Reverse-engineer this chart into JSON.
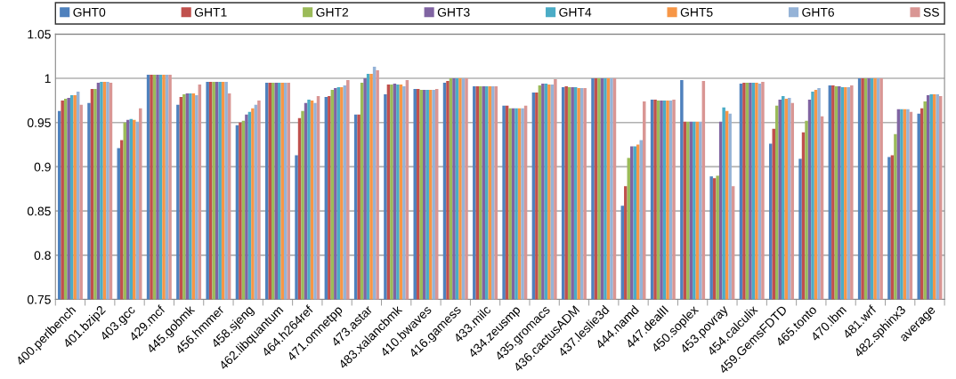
{
  "chart_data": {
    "type": "bar",
    "categories": [
      "400.perlbench",
      "401.bzip2",
      "403.gcc",
      "429.mcf",
      "445.gobmk",
      "456.hmmer",
      "458.sjeng",
      "462.libquantum",
      "464.h264ref",
      "471.omnetpp",
      "473.astar",
      "483.xalancbmk",
      "410.bwaves",
      "416.gamess",
      "433.milc",
      "434.zeusmp",
      "435.gromacs",
      "436.cactusADM",
      "437.leslie3d",
      "444.namd",
      "447.dealII",
      "450.soplex",
      "453.povray",
      "454.calculix",
      "459.GemsFDTD",
      "465.tonto",
      "470.lbm",
      "481.wrf",
      "482.sphinx3",
      "average"
    ],
    "series": [
      {
        "name": "GHT0",
        "color": "#4f81bd",
        "values": [
          0.963,
          0.972,
          0.921,
          1.004,
          0.97,
          0.996,
          0.947,
          0.995,
          0.913,
          0.979,
          0.959,
          0.982,
          0.988,
          0.995,
          0.991,
          0.969,
          0.984,
          0.99,
          1.0,
          0.856,
          0.976,
          0.998,
          0.889,
          0.994,
          0.926,
          0.909,
          0.992,
          1.0,
          0.911,
          0.96
        ]
      },
      {
        "name": "GHT1",
        "color": "#c0504d",
        "values": [
          0.975,
          0.988,
          0.93,
          1.004,
          0.979,
          0.996,
          0.95,
          0.995,
          0.955,
          0.98,
          0.959,
          0.993,
          0.988,
          0.997,
          0.991,
          0.969,
          0.984,
          0.991,
          1.0,
          0.878,
          0.976,
          0.951,
          0.887,
          0.995,
          0.943,
          0.939,
          0.992,
          1.0,
          0.913,
          0.966
        ]
      },
      {
        "name": "GHT2",
        "color": "#9bbb59",
        "values": [
          0.977,
          0.988,
          0.95,
          1.004,
          0.982,
          0.996,
          0.952,
          0.995,
          0.963,
          0.987,
          0.995,
          0.993,
          0.987,
          1.0,
          0.991,
          0.966,
          0.992,
          0.99,
          1.0,
          0.91,
          0.975,
          0.951,
          0.89,
          0.995,
          0.969,
          0.952,
          0.991,
          1.0,
          0.937,
          0.974
        ]
      },
      {
        "name": "GHT3",
        "color": "#8064a2",
        "values": [
          0.978,
          0.995,
          0.953,
          1.004,
          0.983,
          0.996,
          0.959,
          0.995,
          0.972,
          0.989,
          1.0,
          0.994,
          0.987,
          1.0,
          0.991,
          0.966,
          0.994,
          0.99,
          1.0,
          0.923,
          0.975,
          0.951,
          0.951,
          0.995,
          0.976,
          0.976,
          0.991,
          1.0,
          0.965,
          0.981
        ]
      },
      {
        "name": "GHT4",
        "color": "#4bacc6",
        "values": [
          0.981,
          0.996,
          0.954,
          1.004,
          0.983,
          0.996,
          0.962,
          0.995,
          0.976,
          0.99,
          1.005,
          0.993,
          0.987,
          1.0,
          0.991,
          0.966,
          0.994,
          0.99,
          1.0,
          0.923,
          0.975,
          0.951,
          0.967,
          0.995,
          0.98,
          0.985,
          0.99,
          1.0,
          0.965,
          0.982
        ]
      },
      {
        "name": "GHT5",
        "color": "#f79646",
        "values": [
          0.981,
          0.996,
          0.953,
          1.004,
          0.983,
          0.996,
          0.966,
          0.995,
          0.975,
          0.99,
          1.005,
          0.993,
          0.987,
          1.0,
          0.991,
          0.966,
          0.993,
          0.989,
          1.0,
          0.925,
          0.975,
          0.951,
          0.963,
          0.995,
          0.977,
          0.987,
          0.99,
          1.0,
          0.965,
          0.982
        ]
      },
      {
        "name": "GHT6",
        "color": "#95b3d7",
        "values": [
          0.985,
          0.996,
          0.951,
          1.004,
          0.981,
          0.996,
          0.97,
          0.995,
          0.972,
          0.992,
          1.013,
          0.991,
          0.987,
          1.0,
          0.991,
          0.966,
          0.993,
          0.989,
          1.0,
          0.93,
          0.975,
          0.951,
          0.96,
          0.994,
          0.978,
          0.989,
          0.99,
          1.0,
          0.965,
          0.982
        ]
      },
      {
        "name": "SS",
        "color": "#d99694",
        "values": [
          0.97,
          0.995,
          0.966,
          1.004,
          0.993,
          0.983,
          0.975,
          0.995,
          0.98,
          0.998,
          1.009,
          0.998,
          0.988,
          1.0,
          0.991,
          0.969,
          0.999,
          0.989,
          1.0,
          0.974,
          0.976,
          0.997,
          0.878,
          0.996,
          0.972,
          0.957,
          0.992,
          1.0,
          0.962,
          0.98
        ]
      }
    ],
    "ylim": [
      0.75,
      1.05
    ],
    "yticks": [
      {
        "value": 0.75,
        "label": "0.75"
      },
      {
        "value": 0.8,
        "label": "0.8"
      },
      {
        "value": 0.85,
        "label": "0.85"
      },
      {
        "value": 0.9,
        "label": "0.9"
      },
      {
        "value": 0.95,
        "label": "0.95"
      },
      {
        "value": 1.0,
        "label": "1"
      },
      {
        "value": 1.05,
        "label": "1.05"
      }
    ],
    "grid": "y",
    "legend": "top"
  }
}
